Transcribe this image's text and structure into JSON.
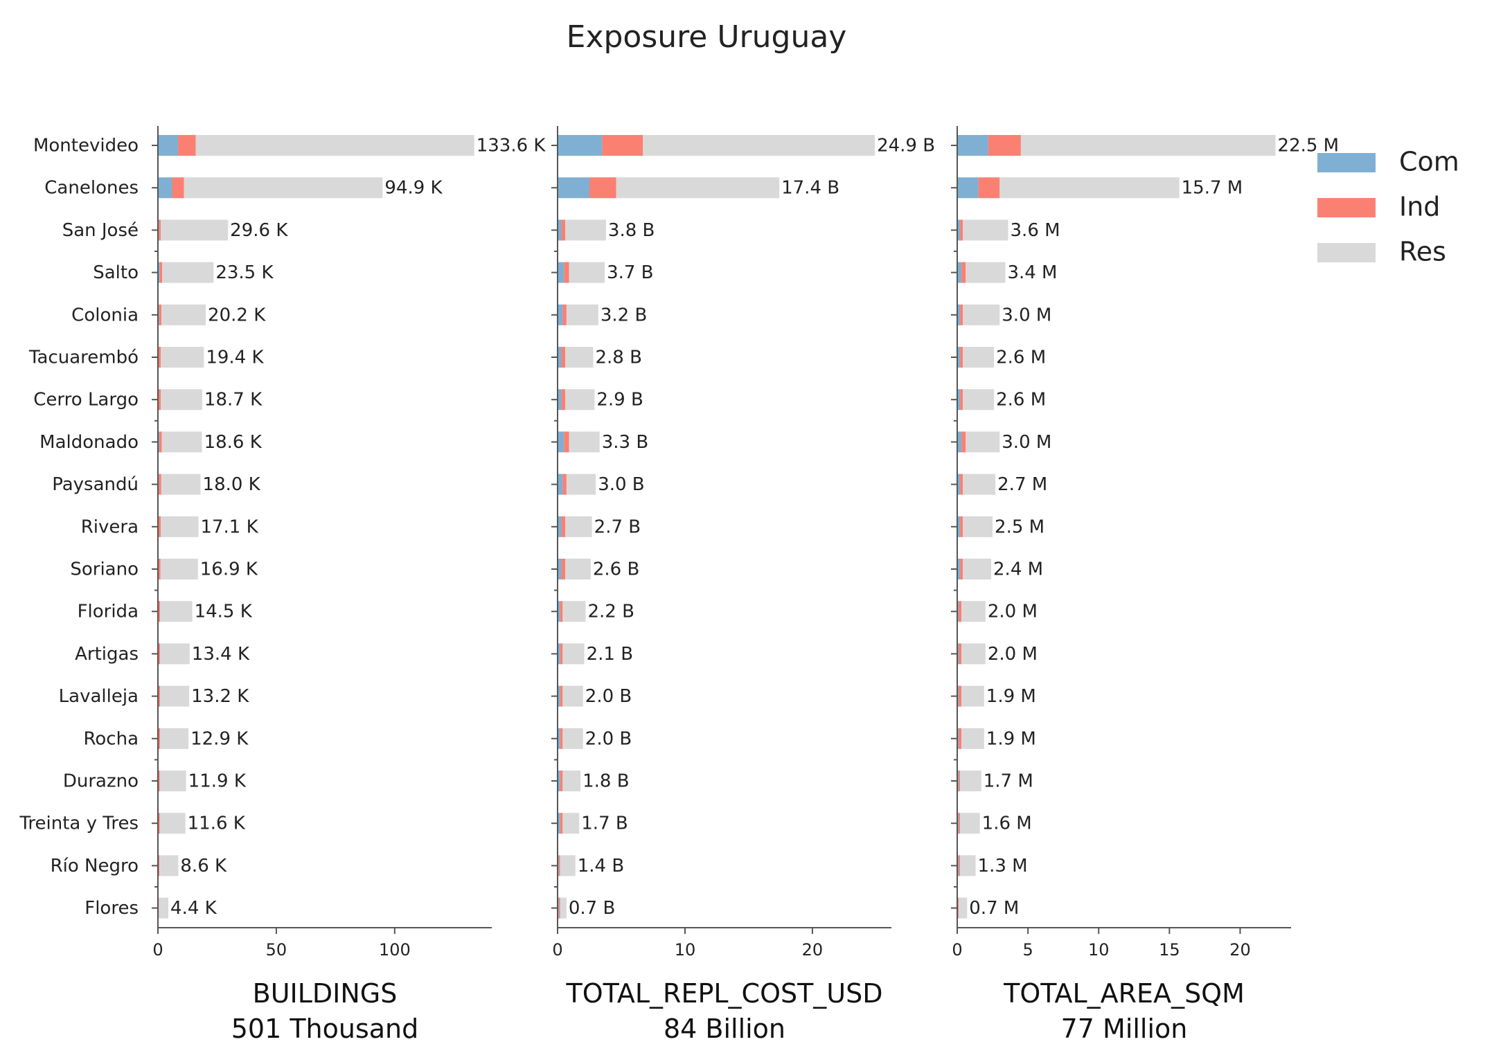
{
  "chart_data": {
    "type": "bar",
    "orientation": "horizontal",
    "stacked": true,
    "title": "Exposure Uruguay",
    "categories": [
      "Montevideo",
      "Canelones",
      "San José",
      "Salto",
      "Colonia",
      "Tacuarembó",
      "Cerro Largo",
      "Maldonado",
      "Paysandú",
      "Rivera",
      "Soriano",
      "Florida",
      "Artigas",
      "Lavalleja",
      "Rocha",
      "Durazno",
      "Treinta y Tres",
      "Río Negro",
      "Flores"
    ],
    "legend": {
      "placement": "top-right",
      "entries": [
        {
          "name": "Com",
          "color": "#7fb0d4"
        },
        {
          "name": "Ind",
          "color": "#fa8072"
        },
        {
          "name": "Res",
          "color": "#d9d9d9"
        }
      ]
    },
    "panels": [
      {
        "xlabel": "BUILDINGS",
        "subtitle": "501 Thousand",
        "xlim": [
          0,
          141
        ],
        "xticks": [
          0,
          50,
          100
        ],
        "series": [
          {
            "name": "Com",
            "values": [
              8.5,
              6.0,
              0.4,
              0.8,
              0.5,
              0.3,
              0.3,
              0.6,
              0.4,
              0.3,
              0.3,
              0.2,
              0.2,
              0.2,
              0.2,
              0.2,
              0.2,
              0.1,
              0.1
            ]
          },
          {
            "name": "Ind",
            "values": [
              7.5,
              5.0,
              0.8,
              1.0,
              1.0,
              0.9,
              0.9,
              1.0,
              1.0,
              0.9,
              0.8,
              0.7,
              0.7,
              0.7,
              0.7,
              0.6,
              0.6,
              0.5,
              0.3
            ]
          },
          {
            "name": "Res",
            "values": [
              117.6,
              83.9,
              28.4,
              21.7,
              18.7,
              18.2,
              17.5,
              17.0,
              16.6,
              15.9,
              15.8,
              13.6,
              12.5,
              12.3,
              12.0,
              11.1,
              10.8,
              8.0,
              4.0
            ]
          }
        ],
        "totals": [
          133.6,
          94.9,
          29.6,
          23.5,
          20.2,
          19.4,
          18.7,
          18.6,
          18.0,
          17.1,
          16.9,
          14.5,
          13.4,
          13.2,
          12.9,
          11.9,
          11.6,
          8.6,
          4.4
        ],
        "labels": [
          "133.6 K",
          "94.9 K",
          "29.6 K",
          "23.5 K",
          "20.2 K",
          "19.4 K",
          "18.7 K",
          "18.6 K",
          "18.0 K",
          "17.1 K",
          "16.9 K",
          "14.5 K",
          "13.4 K",
          "13.2 K",
          "12.9 K",
          "11.9 K",
          "11.6 K",
          "8.6 K",
          "4.4 K"
        ]
      },
      {
        "xlabel": "TOTAL_REPL_COST_USD",
        "subtitle": "84 Billion",
        "xlim": [
          0,
          26.2
        ],
        "xticks": [
          0,
          10,
          20
        ],
        "series": [
          {
            "name": "Com",
            "values": [
              3.5,
              2.5,
              0.3,
              0.5,
              0.4,
              0.3,
              0.3,
              0.5,
              0.4,
              0.3,
              0.3,
              0.2,
              0.2,
              0.2,
              0.2,
              0.2,
              0.2,
              0.1,
              0.1
            ]
          },
          {
            "name": "Ind",
            "values": [
              3.2,
              2.1,
              0.3,
              0.4,
              0.3,
              0.3,
              0.3,
              0.4,
              0.3,
              0.3,
              0.3,
              0.2,
              0.2,
              0.2,
              0.2,
              0.2,
              0.2,
              0.1,
              0.1
            ]
          },
          {
            "name": "Res",
            "values": [
              18.2,
              12.8,
              3.2,
              2.8,
              2.5,
              2.2,
              2.3,
              2.4,
              2.3,
              2.1,
              2.0,
              1.8,
              1.7,
              1.6,
              1.6,
              1.4,
              1.3,
              1.2,
              0.5
            ]
          }
        ],
        "totals": [
          24.9,
          17.4,
          3.8,
          3.7,
          3.2,
          2.8,
          2.9,
          3.3,
          3.0,
          2.7,
          2.6,
          2.2,
          2.1,
          2.0,
          2.0,
          1.8,
          1.7,
          1.4,
          0.7
        ],
        "labels": [
          "24.9 B",
          "17.4 B",
          "3.8 B",
          "3.7 B",
          "3.2 B",
          "2.8 B",
          "2.9 B",
          "3.3 B",
          "3.0 B",
          "2.7 B",
          "2.6 B",
          "2.2 B",
          "2.1 B",
          "2.0 B",
          "2.0 B",
          "1.8 B",
          "1.7 B",
          "1.4 B",
          "0.7 B"
        ]
      },
      {
        "xlabel": "TOTAL_AREA_SQM",
        "subtitle": "77 Million",
        "xlim": [
          0,
          23.6
        ],
        "xticks": [
          0,
          5,
          10,
          15,
          20
        ],
        "series": [
          {
            "name": "Com",
            "values": [
              2.2,
              1.5,
              0.2,
              0.3,
              0.2,
              0.2,
              0.2,
              0.3,
              0.2,
              0.2,
              0.2,
              0.1,
              0.1,
              0.1,
              0.1,
              0.1,
              0.1,
              0.1,
              0.05
            ]
          },
          {
            "name": "Ind",
            "values": [
              2.3,
              1.5,
              0.2,
              0.3,
              0.2,
              0.2,
              0.2,
              0.3,
              0.2,
              0.2,
              0.2,
              0.2,
              0.2,
              0.2,
              0.2,
              0.1,
              0.1,
              0.1,
              0.05
            ]
          },
          {
            "name": "Res",
            "values": [
              18.0,
              12.7,
              3.2,
              2.8,
              2.6,
              2.2,
              2.2,
              2.4,
              2.3,
              2.1,
              2.0,
              1.7,
              1.7,
              1.6,
              1.6,
              1.5,
              1.4,
              1.1,
              0.6
            ]
          }
        ],
        "totals": [
          22.5,
          15.7,
          3.6,
          3.4,
          3.0,
          2.6,
          2.6,
          3.0,
          2.7,
          2.5,
          2.4,
          2.0,
          2.0,
          1.9,
          1.9,
          1.7,
          1.6,
          1.3,
          0.7
        ],
        "labels": [
          "22.5 M",
          "15.7 M",
          "3.6 M",
          "3.4 M",
          "3.0 M",
          "2.6 M",
          "2.6 M",
          "3.0 M",
          "2.7 M",
          "2.5 M",
          "2.4 M",
          "2.0 M",
          "2.0 M",
          "1.9 M",
          "1.9 M",
          "1.7 M",
          "1.6 M",
          "1.3 M",
          "0.7 M"
        ]
      }
    ]
  }
}
